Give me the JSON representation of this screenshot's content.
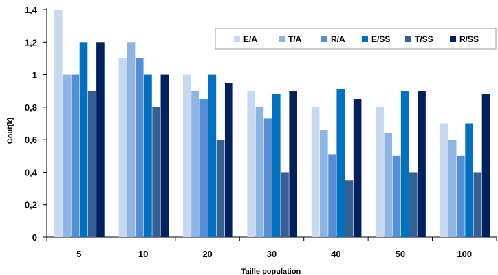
{
  "chart_data": {
    "type": "bar",
    "title": "",
    "xlabel": "Taille population",
    "ylabel": "Cout(k)",
    "categories": [
      "5",
      "10",
      "20",
      "30",
      "40",
      "50",
      "100"
    ],
    "ylim": [
      0,
      1.4
    ],
    "yticks": [
      "0",
      "0,2",
      "0,4",
      "0,6",
      "0,8",
      "1",
      "1,2",
      "1,4"
    ],
    "ytick_values": [
      0,
      0.2,
      0.4,
      0.6,
      0.8,
      1.0,
      1.2,
      1.4
    ],
    "grid": false,
    "legend_position": "top-right",
    "series": [
      {
        "name": "E/A",
        "color": "#c6d9f1",
        "values": [
          1.4,
          1.1,
          1.0,
          0.9,
          0.8,
          0.8,
          0.7
        ]
      },
      {
        "name": "T/A",
        "color": "#8db4e2",
        "values": [
          1.0,
          1.2,
          0.9,
          0.8,
          0.66,
          0.64,
          0.6
        ]
      },
      {
        "name": "R/A",
        "color": "#558ed5",
        "values": [
          1.0,
          1.1,
          0.85,
          0.73,
          0.51,
          0.5,
          0.5
        ]
      },
      {
        "name": "E/SS",
        "color": "#0070c0",
        "values": [
          1.2,
          1.0,
          1.0,
          0.88,
          0.91,
          0.9,
          0.7
        ]
      },
      {
        "name": "T/SS",
        "color": "#376092",
        "values": [
          0.9,
          0.8,
          0.6,
          0.4,
          0.35,
          0.4,
          0.4
        ]
      },
      {
        "name": "R/SS",
        "color": "#002060",
        "values": [
          1.2,
          1.0,
          0.95,
          0.9,
          0.85,
          0.9,
          0.88
        ]
      }
    ]
  }
}
